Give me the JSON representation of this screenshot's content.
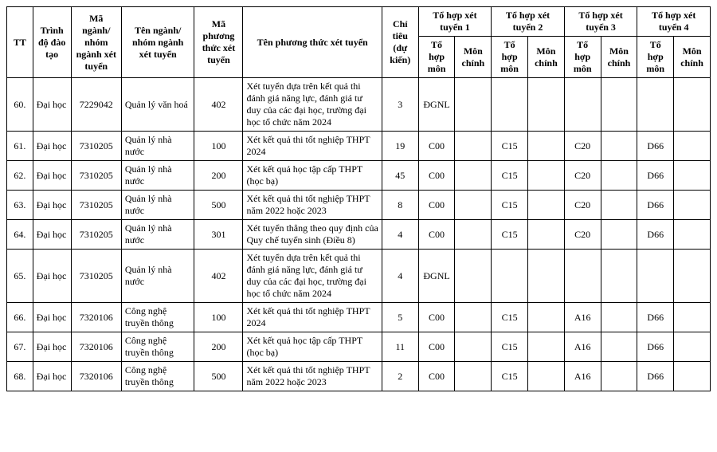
{
  "header": {
    "tt": "TT",
    "trinh_do": "Trình độ đào tạo",
    "ma_nganh": "Mã ngành/ nhóm ngành xét tuyển",
    "ten_nganh": "Tên ngành/ nhóm ngành xét tuyển",
    "ma_phuong_thuc": "Mã phương thức xét tuyển",
    "ten_phuong_thuc": "Tên phương thức xét tuyển",
    "chi_tieu": "Chỉ tiêu (dự kiến)",
    "to_hop_1": "Tổ hợp xét tuyển 1",
    "to_hop_2": "Tổ hợp xét tuyển 2",
    "to_hop_3": "Tổ hợp xét tuyển 3",
    "to_hop_4": "Tổ hợp xét tuyển 4",
    "th_mon": "Tổ hợp môn",
    "mon_chinh": "Môn chính"
  },
  "rows": [
    {
      "tt": "60.",
      "trinh": "Đại học",
      "ma": "7229042",
      "ten": "Quản lý văn hoá",
      "mapt": "402",
      "tenpt": "Xét tuyển dựa trên kết quả thi đánh giá năng lực, đánh giá tư duy của các đại học, trường đại học tổ chức năm 2024",
      "chi": "3",
      "th1": "ĐGNL",
      "mc1": "",
      "th2": "",
      "mc2": "",
      "th3": "",
      "mc3": "",
      "th4": "",
      "mc4": ""
    },
    {
      "tt": "61.",
      "trinh": "Đại học",
      "ma": "7310205",
      "ten": "Quản lý nhà nước",
      "mapt": "100",
      "tenpt": "Xét kết quả thi tốt nghiệp THPT 2024",
      "chi": "19",
      "th1": "C00",
      "mc1": "",
      "th2": "C15",
      "mc2": "",
      "th3": "C20",
      "mc3": "",
      "th4": "D66",
      "mc4": ""
    },
    {
      "tt": "62.",
      "trinh": "Đại học",
      "ma": "7310205",
      "ten": "Quản lý nhà nước",
      "mapt": "200",
      "tenpt": "Xét kết quả học tập cấp THPT (học bạ)",
      "chi": "45",
      "th1": "C00",
      "mc1": "",
      "th2": "C15",
      "mc2": "",
      "th3": "C20",
      "mc3": "",
      "th4": "D66",
      "mc4": ""
    },
    {
      "tt": "63.",
      "trinh": "Đại học",
      "ma": "7310205",
      "ten": "Quản lý nhà nước",
      "mapt": "500",
      "tenpt": "Xét kết quả thi tốt nghiệp THPT năm 2022 hoặc 2023",
      "chi": "8",
      "th1": "C00",
      "mc1": "",
      "th2": "C15",
      "mc2": "",
      "th3": "C20",
      "mc3": "",
      "th4": "D66",
      "mc4": ""
    },
    {
      "tt": "64.",
      "trinh": "Đại học",
      "ma": "7310205",
      "ten": "Quản lý nhà nước",
      "mapt": "301",
      "tenpt": "Xét tuyển thẳng theo quy định của Quy chế tuyển sinh (Điều 8)",
      "chi": "4",
      "th1": "C00",
      "mc1": "",
      "th2": "C15",
      "mc2": "",
      "th3": "C20",
      "mc3": "",
      "th4": "D66",
      "mc4": ""
    },
    {
      "tt": "65.",
      "trinh": "Đại học",
      "ma": "7310205",
      "ten": "Quản lý nhà nước",
      "mapt": "402",
      "tenpt": "Xét tuyển dựa trên kết quả thi đánh giá năng lực, đánh giá tư duy của các đại học, trường đại học tổ chức năm 2024",
      "chi": "4",
      "th1": "ĐGNL",
      "mc1": "",
      "th2": "",
      "mc2": "",
      "th3": "",
      "mc3": "",
      "th4": "",
      "mc4": ""
    },
    {
      "tt": "66.",
      "trinh": "Đại học",
      "ma": "7320106",
      "ten": "Công nghệ truyền thông",
      "mapt": "100",
      "tenpt": "Xét kết quả thi tốt nghiệp THPT 2024",
      "chi": "5",
      "th1": "C00",
      "mc1": "",
      "th2": "C15",
      "mc2": "",
      "th3": "A16",
      "mc3": "",
      "th4": "D66",
      "mc4": ""
    },
    {
      "tt": "67.",
      "trinh": "Đại học",
      "ma": "7320106",
      "ten": "Công nghệ truyền thông",
      "mapt": "200",
      "tenpt": "Xét kết quả học tập cấp THPT (học bạ)",
      "chi": "11",
      "th1": "C00",
      "mc1": "",
      "th2": "C15",
      "mc2": "",
      "th3": "A16",
      "mc3": "",
      "th4": "D66",
      "mc4": ""
    },
    {
      "tt": "68.",
      "trinh": "Đại học",
      "ma": "7320106",
      "ten": "Công nghệ truyền thông",
      "mapt": "500",
      "tenpt": "Xét kết quả thi tốt nghiệp THPT năm 2022 hoặc 2023",
      "chi": "2",
      "th1": "C00",
      "mc1": "",
      "th2": "C15",
      "mc2": "",
      "th3": "A16",
      "mc3": "",
      "th4": "D66",
      "mc4": ""
    }
  ]
}
